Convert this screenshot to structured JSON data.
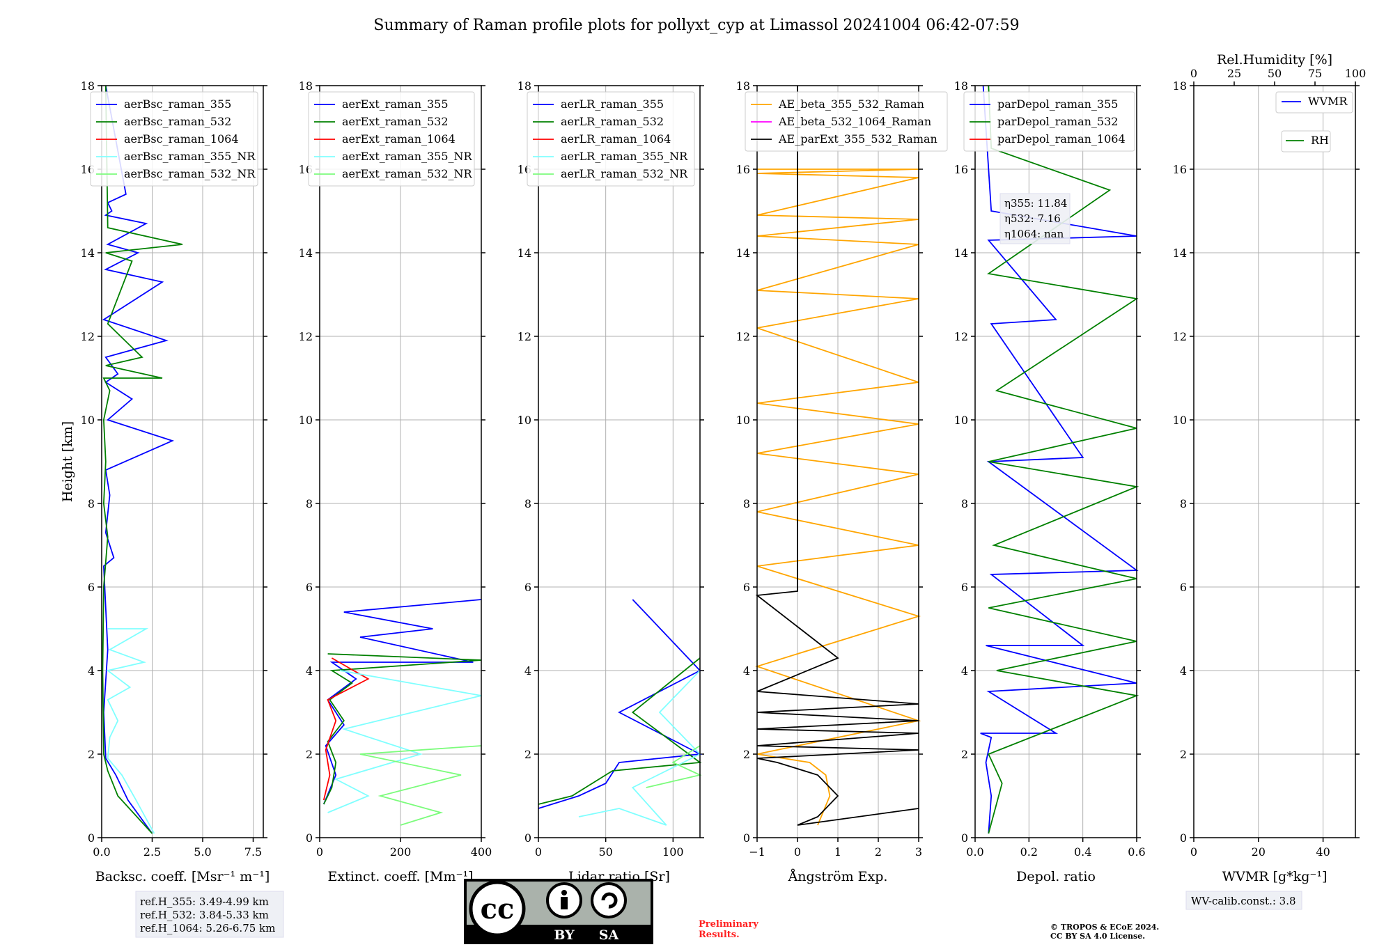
{
  "title": "Summary of Raman profile plots for pollyxt_cyp at Limassol 20241004 06:42-07:59",
  "ylabel": "Height [km]",
  "colors": {
    "blue": "#0000ff",
    "green": "#008000",
    "red": "#ff0000",
    "cyan": "#80ffff",
    "lightgreen": "#7cfc7c",
    "orange": "#ffa500",
    "magenta": "#ff00ff",
    "black": "#000000"
  },
  "ref_heights": [
    "ref.H_355: 3.49-4.99 km",
    "ref.H_532: 3.84-5.33 km",
    "ref.H_1064: 5.26-6.75 km"
  ],
  "eta": [
    "η355: 11.84",
    "η532: 7.16",
    "η1064: nan"
  ],
  "wv_calib": "WV-calib.const.: 3.8",
  "rh_axis_label": "Rel.Humidity [%]",
  "rh_ticks": [
    "0",
    "25",
    "50",
    "75",
    "100"
  ],
  "license": {
    "cc": "cc",
    "by": "BY",
    "sa": "SA"
  },
  "preliminary": [
    "Preliminary",
    "Results."
  ],
  "copyright": [
    "© TROPOS & ECoE 2024.",
    "CC BY SA 4.0 License."
  ],
  "chart_data": [
    {
      "type": "line",
      "name": "backscatter",
      "xlabel": "Backsc. coeff. [Msr⁻¹ m⁻¹]",
      "xlim": [
        0,
        8
      ],
      "xticks": [
        "0.0",
        "2.5",
        "5.0",
        "7.5"
      ],
      "ylim": [
        0,
        18
      ],
      "yticks": [
        "0",
        "2",
        "4",
        "6",
        "8",
        "10",
        "12",
        "14",
        "16",
        "18"
      ],
      "series": [
        {
          "name": "aerBsc_raman_355",
          "color": "blue",
          "x": [
            2.5,
            1.3,
            0.7,
            0.2,
            0.1,
            0.3,
            0.2,
            0.1,
            0.6,
            0.2,
            0.4,
            0.2,
            3.5,
            0.3,
            1.5,
            0.2,
            0.8,
            0.2,
            3.2,
            0.1,
            3.0,
            0.2,
            1.8,
            0.3,
            2.2,
            0.2,
            0.5,
            0.3,
            1.2,
            0.2
          ],
          "y": [
            0.1,
            0.9,
            1.5,
            1.9,
            3,
            4.5,
            5.5,
            6.5,
            6.7,
            7.3,
            8.2,
            8.8,
            9.5,
            10,
            10.5,
            10.9,
            11.1,
            11.5,
            11.9,
            12.4,
            13.3,
            13.6,
            14,
            14.2,
            14.7,
            14.9,
            15,
            15.2,
            15.4,
            18
          ]
        },
        {
          "name": "aerBsc_raman_532",
          "color": "green",
          "x": [
            2.5,
            0.8,
            0.3,
            0.1,
            0.05,
            0.1,
            0.3,
            0.1,
            0.2,
            0.1,
            0.4,
            0.1,
            3.0,
            0.2,
            2.0,
            0.3,
            1.5,
            0.2,
            4.0,
            0.3,
            0.2
          ],
          "y": [
            0.1,
            1.0,
            1.6,
            2.0,
            4,
            6,
            7.2,
            8,
            9,
            10,
            10.7,
            11,
            11,
            11.3,
            11.5,
            12.3,
            13.8,
            14,
            14.2,
            14.6,
            18
          ]
        },
        {
          "name": "aerBsc_raman_1064",
          "color": "red",
          "x": [],
          "y": []
        },
        {
          "name": "aerBsc_raman_355_NR",
          "color": "cyan",
          "x": [
            2.6,
            1.7,
            1.0,
            0.3,
            0.4,
            0.8,
            0.3,
            1.4,
            0.3,
            2.1,
            0.4,
            2.2,
            0.3
          ],
          "y": [
            0.1,
            0.9,
            1.5,
            1.9,
            2.4,
            2.8,
            3.3,
            3.6,
            4.0,
            4.2,
            4.5,
            5.0,
            5.0
          ]
        },
        {
          "name": "aerBsc_raman_532_NR",
          "color": "lightgreen",
          "x": [],
          "y": []
        }
      ]
    },
    {
      "type": "line",
      "name": "extinction",
      "xlabel": "Extinct. coeff. [Mm⁻¹]",
      "xlim": [
        0,
        400
      ],
      "xticks": [
        "0",
        "200",
        "400"
      ],
      "ylim": [
        0,
        18
      ],
      "yticks": [
        "0",
        "2",
        "4",
        "6",
        "8",
        "10",
        "12",
        "14",
        "16",
        "18"
      ],
      "series": [
        {
          "name": "aerExt_raman_355",
          "color": "blue",
          "x": [
            10,
            40,
            15,
            60,
            20,
            90,
            30,
            380,
            100,
            280,
            60,
            400
          ],
          "y": [
            0.8,
            1.5,
            2.2,
            2.7,
            3.3,
            3.8,
            4.2,
            4.2,
            4.8,
            5.0,
            5.4,
            5.7
          ]
        },
        {
          "name": "aerExt_raman_532",
          "color": "green",
          "x": [
            10,
            30,
            40,
            20,
            60,
            25,
            80,
            30,
            400,
            20
          ],
          "y": [
            0.8,
            1.2,
            1.8,
            2.3,
            2.8,
            3.3,
            3.7,
            4.0,
            4.25,
            4.4
          ]
        },
        {
          "name": "aerExt_raman_1064",
          "color": "red",
          "x": [
            10,
            25,
            15,
            40,
            20,
            120,
            30
          ],
          "y": [
            0.9,
            1.5,
            2.1,
            2.8,
            3.3,
            3.8,
            4.3
          ]
        },
        {
          "name": "aerExt_raman_355_NR",
          "color": "cyan",
          "x": [
            20,
            120,
            40,
            250,
            60,
            400,
            50
          ],
          "y": [
            0.6,
            1.0,
            1.4,
            2.0,
            2.6,
            3.4,
            4.0
          ]
        },
        {
          "name": "aerExt_raman_532_NR",
          "color": "lightgreen",
          "x": [
            200,
            300,
            150,
            350,
            100,
            400
          ],
          "y": [
            0.3,
            0.6,
            1.0,
            1.5,
            2.0,
            2.2
          ]
        }
      ]
    },
    {
      "type": "line",
      "name": "lidar_ratio",
      "xlabel": "Lidar ratio [Sr]",
      "xlim": [
        0,
        120
      ],
      "xticks": [
        "0",
        "50",
        "100"
      ],
      "ylim": [
        0,
        18
      ],
      "yticks": [
        "0",
        "2",
        "4",
        "6",
        "8",
        "10",
        "12",
        "14",
        "16",
        "18"
      ],
      "series": [
        {
          "name": "aerLR_raman_355",
          "color": "blue",
          "x": [
            0,
            30,
            50,
            60,
            120,
            60,
            120,
            70
          ],
          "y": [
            0.7,
            1.0,
            1.3,
            1.8,
            2.0,
            3.0,
            4.0,
            5.7
          ]
        },
        {
          "name": "aerLR_raman_532",
          "color": "green",
          "x": [
            0,
            25,
            40,
            55,
            120,
            70,
            120
          ],
          "y": [
            0.8,
            1.0,
            1.3,
            1.6,
            1.8,
            3.0,
            4.3
          ]
        },
        {
          "name": "aerLR_raman_1064",
          "color": "red",
          "x": [],
          "y": []
        },
        {
          "name": "aerLR_raman_355_NR",
          "color": "cyan",
          "x": [
            30,
            60,
            95,
            70,
            120,
            90,
            120
          ],
          "y": [
            0.5,
            0.7,
            0.3,
            1.2,
            2.0,
            3.0,
            4.0
          ]
        },
        {
          "name": "aerLR_raman_532_NR",
          "color": "lightgreen",
          "x": [
            80,
            120,
            100,
            120
          ],
          "y": [
            1.2,
            1.5,
            1.8,
            2.2
          ]
        }
      ]
    },
    {
      "type": "line",
      "name": "angstrom",
      "xlabel": "Ångström Exp.",
      "xlim": [
        -1,
        3
      ],
      "xticks": [
        "−1",
        "0",
        "1",
        "2",
        "3"
      ],
      "ylim": [
        0,
        18
      ],
      "yticks": [
        "0",
        "2",
        "4",
        "6",
        "8",
        "10",
        "12",
        "14",
        "16",
        "18"
      ],
      "series": [
        {
          "name": "AE_beta_355_532_Raman",
          "color": "orange",
          "x": [
            0.5,
            0.8,
            0.7,
            0.3,
            -1,
            3,
            -1,
            3,
            -1,
            3,
            -1,
            3,
            -1,
            3,
            -1,
            3,
            -1,
            3,
            -1,
            3,
            -1,
            3,
            -1,
            3,
            -1,
            3,
            -1
          ],
          "y": [
            0.3,
            1.0,
            1.5,
            1.8,
            2.0,
            2.8,
            4.1,
            5.3,
            6.5,
            7.0,
            7.8,
            8.7,
            9.2,
            9.9,
            10.4,
            10.9,
            12.2,
            12.9,
            13.1,
            14.2,
            14.4,
            14.8,
            14.9,
            15.8,
            15.9,
            16,
            16
          ]
        },
        {
          "name": "AE_beta_532_1064_Raman",
          "color": "magenta",
          "x": [],
          "y": []
        },
        {
          "name": "AE_parExt_355_532_Raman",
          "color": "black",
          "x": [
            3,
            0,
            0.5,
            1,
            0.5,
            -0.5,
            -1,
            3,
            -1,
            3,
            -1,
            3,
            -1,
            3,
            -1,
            1,
            -1,
            0,
            0,
            0
          ],
          "y": [
            0.7,
            0.3,
            0.5,
            1.0,
            1.5,
            1.8,
            1.9,
            2.1,
            2.2,
            2.5,
            2.6,
            2.8,
            3.0,
            3.2,
            3.5,
            4.3,
            5.8,
            5.9,
            6,
            18
          ]
        }
      ]
    },
    {
      "type": "line",
      "name": "depol",
      "xlabel": "Depol. ratio",
      "xlim": [
        0,
        0.6
      ],
      "xticks": [
        "0.0",
        "0.2",
        "0.4",
        "0.6"
      ],
      "ylim": [
        0,
        18
      ],
      "yticks": [
        "0",
        "2",
        "4",
        "6",
        "8",
        "10",
        "12",
        "14",
        "16",
        "18"
      ],
      "series": [
        {
          "name": "parDepol_raman_355",
          "color": "blue",
          "x": [
            0.05,
            0.06,
            0.04,
            0.06,
            0.02,
            0.3,
            0.05,
            0.6,
            0.04,
            0.4,
            0.06,
            0.6,
            0.05,
            0.4,
            0.06,
            0.3,
            0.05,
            0.6,
            0.06,
            0.03
          ],
          "y": [
            0.1,
            1.0,
            1.8,
            2.4,
            2.5,
            2.5,
            3.5,
            3.7,
            4.6,
            4.6,
            6.3,
            6.4,
            9.0,
            9.1,
            12.3,
            12.4,
            14.3,
            14.4,
            15,
            18
          ]
        },
        {
          "name": "parDepol_raman_532",
          "color": "green",
          "x": [
            0.05,
            0.1,
            0.05,
            0.6,
            0.08,
            0.6,
            0.05,
            0.6,
            0.07,
            0.6,
            0.05,
            0.6,
            0.08,
            0.6,
            0.05,
            0.5,
            0.06,
            0.05
          ],
          "y": [
            0.1,
            1.3,
            2.0,
            3.4,
            4.0,
            4.7,
            5.5,
            6.2,
            7.0,
            8.4,
            9.0,
            9.8,
            10.7,
            12.9,
            13.5,
            15.5,
            16.5,
            18
          ]
        },
        {
          "name": "parDepol_raman_1064",
          "color": "red",
          "x": [],
          "y": []
        }
      ]
    },
    {
      "type": "line",
      "name": "wvmr",
      "xlabel": "WVMR [g*kg⁻¹]",
      "xlim": [
        0,
        50
      ],
      "xticks": [
        "0",
        "20",
        "40"
      ],
      "ylim": [
        0,
        18
      ],
      "yticks": [
        "0",
        "2",
        "4",
        "6",
        "8",
        "10",
        "12",
        "14",
        "16",
        "18"
      ],
      "series": [
        {
          "name": "WVMR",
          "color": "blue",
          "x": [],
          "y": []
        },
        {
          "name": "RH",
          "color": "green",
          "x": [],
          "y": []
        }
      ]
    }
  ]
}
